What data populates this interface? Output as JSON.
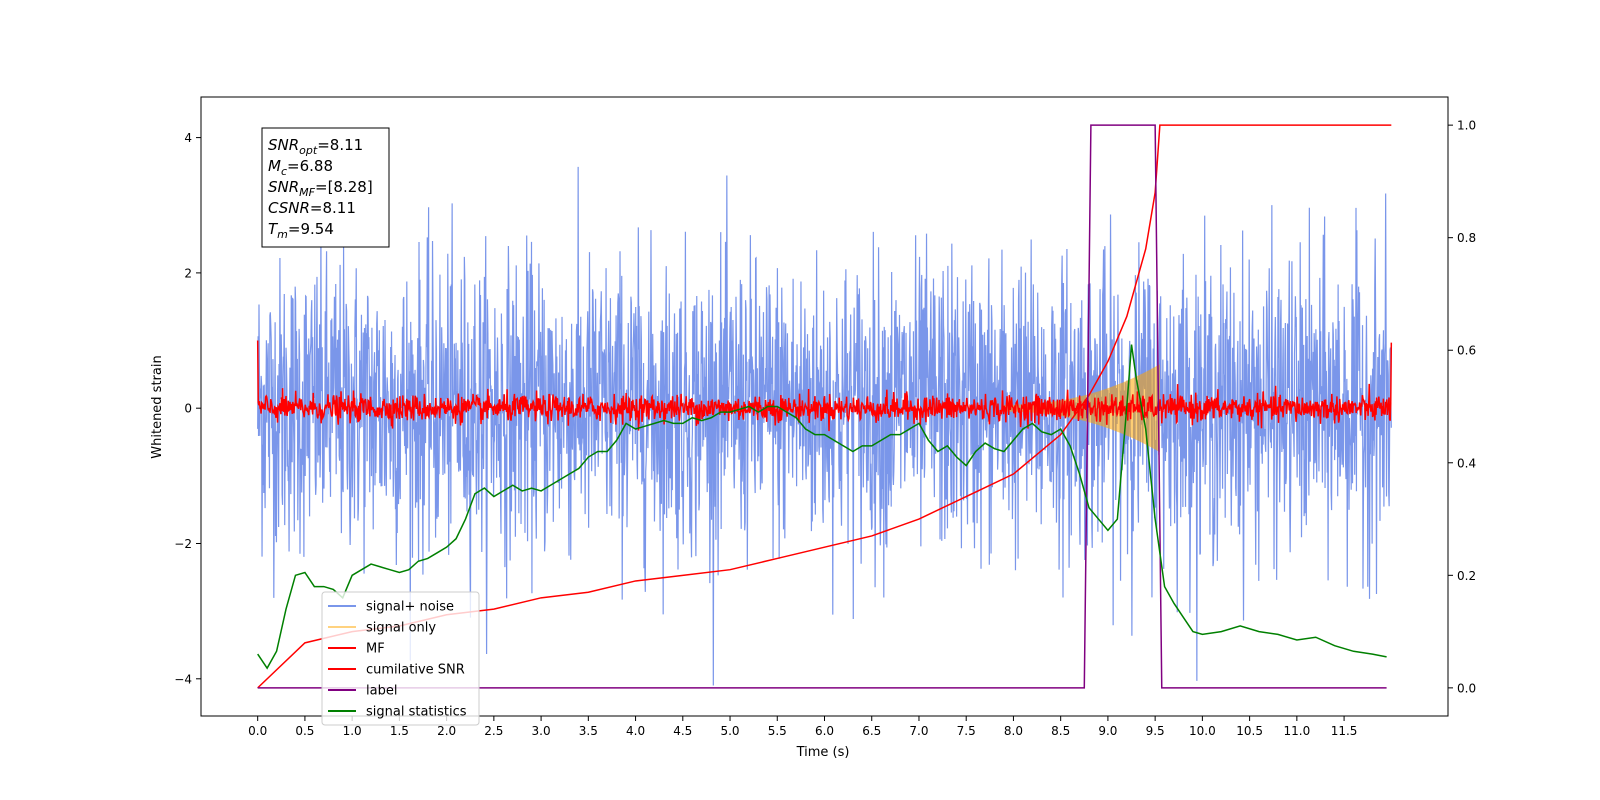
{
  "chart_data": {
    "type": "line",
    "xlabel": "Time (s)",
    "ylabel": "Whitened strain",
    "xlim": [
      -0.6,
      12.6
    ],
    "ylim": [
      -4.55,
      4.6
    ],
    "y2lim": [
      -0.05,
      1.05
    ],
    "x_ticks": [
      "0.0",
      "0.5",
      "1.0",
      "1.5",
      "2.0",
      "2.5",
      "3.0",
      "3.5",
      "4.0",
      "4.5",
      "5.0",
      "5.5",
      "6.0",
      "6.5",
      "7.0",
      "7.5",
      "8.0",
      "8.5",
      "9.0",
      "9.5",
      "10.0",
      "10.5",
      "11.0",
      "11.5"
    ],
    "y_ticks": [
      "−4",
      "−2",
      "0",
      "2",
      "4"
    ],
    "y2_ticks": [
      "0.0",
      "0.2",
      "0.4",
      "0.6",
      "0.8",
      "1.0"
    ],
    "colors": {
      "signal_noise": "#4169e1",
      "signal_only": "#ffa500",
      "mf": "#ff0000",
      "cumulative_snr": "#ff0000",
      "label": "#800080",
      "signal_statistics": "#008000"
    },
    "series": [
      {
        "name": "signal+ noise",
        "axis": "left",
        "kind": "noise",
        "x_range": [
          0,
          12
        ],
        "sigma": 1.0,
        "alpha": 0.7
      },
      {
        "name": "signal only",
        "axis": "left",
        "kind": "chirp",
        "x_range": [
          0,
          9.55
        ],
        "peak_amplitude": 0.6
      },
      {
        "name": "MF",
        "axis": "left",
        "kind": "noise",
        "x_range": [
          0,
          12
        ],
        "sigma": 0.1,
        "start_value": 1.0,
        "end_value": 0.97
      },
      {
        "name": "cumilative SNR",
        "axis": "right",
        "x": [
          0.0,
          0.5,
          1.0,
          1.5,
          2.0,
          2.5,
          3.0,
          3.5,
          4.0,
          4.5,
          5.0,
          5.5,
          6.0,
          6.5,
          7.0,
          7.5,
          8.0,
          8.5,
          8.8,
          9.0,
          9.2,
          9.4,
          9.5,
          9.55,
          12.0
        ],
        "values": [
          0.0,
          0.08,
          0.1,
          0.11,
          0.13,
          0.14,
          0.16,
          0.17,
          0.19,
          0.2,
          0.21,
          0.23,
          0.25,
          0.27,
          0.3,
          0.34,
          0.38,
          0.45,
          0.52,
          0.58,
          0.66,
          0.78,
          0.88,
          1.0,
          1.0
        ]
      },
      {
        "name": "label",
        "axis": "right",
        "x": [
          0.0,
          8.75,
          8.82,
          9.5,
          9.57,
          11.95
        ],
        "values": [
          0,
          0,
          1,
          1,
          0,
          0
        ]
      },
      {
        "name": "signal statistics",
        "axis": "right",
        "x": [
          0.0,
          0.1,
          0.2,
          0.3,
          0.4,
          0.5,
          0.6,
          0.7,
          0.8,
          0.9,
          1.0,
          1.1,
          1.2,
          1.3,
          1.4,
          1.5,
          1.6,
          1.7,
          1.8,
          1.9,
          2.0,
          2.1,
          2.2,
          2.3,
          2.4,
          2.5,
          2.6,
          2.7,
          2.8,
          2.9,
          3.0,
          3.1,
          3.2,
          3.3,
          3.4,
          3.5,
          3.6,
          3.7,
          3.8,
          3.9,
          4.0,
          4.1,
          4.2,
          4.3,
          4.4,
          4.5,
          4.6,
          4.7,
          4.8,
          4.9,
          5.0,
          5.1,
          5.2,
          5.3,
          5.4,
          5.5,
          5.6,
          5.7,
          5.8,
          5.9,
          6.0,
          6.1,
          6.2,
          6.3,
          6.4,
          6.5,
          6.6,
          6.7,
          6.8,
          6.9,
          7.0,
          7.1,
          7.2,
          7.3,
          7.4,
          7.5,
          7.6,
          7.7,
          7.8,
          7.9,
          8.0,
          8.1,
          8.2,
          8.3,
          8.4,
          8.5,
          8.6,
          8.7,
          8.8,
          8.9,
          9.0,
          9.1,
          9.2,
          9.25,
          9.3,
          9.4,
          9.5,
          9.6,
          9.7,
          9.8,
          9.9,
          10.0,
          10.2,
          10.4,
          10.6,
          10.8,
          11.0,
          11.2,
          11.4,
          11.6,
          11.8,
          11.95
        ],
        "values": [
          0.06,
          0.035,
          0.065,
          0.14,
          0.2,
          0.205,
          0.18,
          0.18,
          0.175,
          0.16,
          0.2,
          0.21,
          0.22,
          0.215,
          0.21,
          0.205,
          0.21,
          0.225,
          0.23,
          0.24,
          0.25,
          0.265,
          0.3,
          0.345,
          0.355,
          0.34,
          0.35,
          0.36,
          0.35,
          0.355,
          0.35,
          0.36,
          0.37,
          0.38,
          0.39,
          0.41,
          0.42,
          0.42,
          0.44,
          0.47,
          0.46,
          0.465,
          0.47,
          0.475,
          0.47,
          0.47,
          0.48,
          0.475,
          0.48,
          0.49,
          0.49,
          0.495,
          0.5,
          0.49,
          0.5,
          0.5,
          0.49,
          0.48,
          0.46,
          0.45,
          0.45,
          0.44,
          0.43,
          0.42,
          0.43,
          0.43,
          0.44,
          0.45,
          0.45,
          0.46,
          0.47,
          0.44,
          0.42,
          0.43,
          0.41,
          0.395,
          0.42,
          0.435,
          0.425,
          0.42,
          0.44,
          0.46,
          0.47,
          0.455,
          0.45,
          0.46,
          0.43,
          0.38,
          0.32,
          0.3,
          0.28,
          0.3,
          0.5,
          0.61,
          0.55,
          0.46,
          0.3,
          0.18,
          0.15,
          0.125,
          0.1,
          0.095,
          0.1,
          0.11,
          0.1,
          0.095,
          0.085,
          0.09,
          0.075,
          0.065,
          0.06,
          0.055
        ]
      }
    ]
  },
  "annotation": {
    "lines": [
      {
        "sym": "SNR",
        "sub": "opt",
        "val": "=8.11"
      },
      {
        "sym": "M",
        "sub": "c",
        "val": "=6.88"
      },
      {
        "sym": "SNR",
        "sub": "MF",
        "val": "=[8.28]"
      },
      {
        "sym": "CSNR",
        "sub": "",
        "val": "=8.11"
      },
      {
        "sym": "T",
        "sub": "m",
        "val": "=9.54"
      }
    ]
  },
  "legend": {
    "entries": [
      "signal+ noise",
      "signal only",
      "MF",
      "cumilative SNR",
      "label",
      "signal statistics"
    ]
  }
}
